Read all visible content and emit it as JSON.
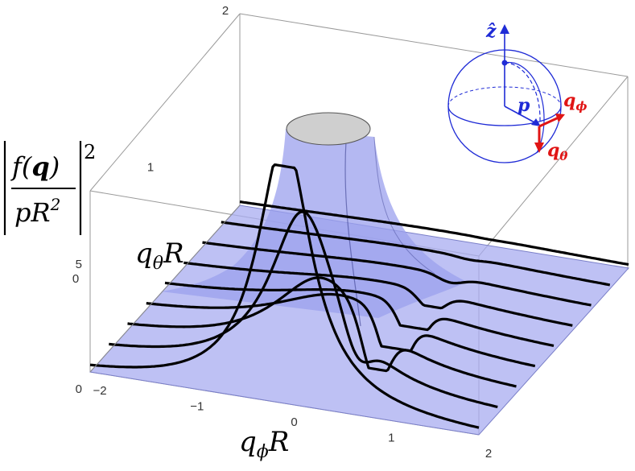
{
  "chart_data": {
    "type": "surface3d",
    "title": "",
    "x_axis": {
      "label": "q",
      "label_sub": "ϕ",
      "label_suffix": "R",
      "ticks": [
        "−2",
        "−1",
        "0",
        "1",
        "2"
      ],
      "range": [
        -2,
        2
      ]
    },
    "y_axis": {
      "label": "q",
      "label_sub": "θ",
      "label_suffix": "R",
      "ticks": [
        "0",
        "1",
        "2"
      ],
      "range": [
        0,
        2
      ]
    },
    "z_axis": {
      "label_parts": {
        "f": "f",
        "lparen": "(",
        "q": "q",
        "rparen": ")",
        "denominator_p": "p",
        "denominator_R": "R",
        "denominator_exp": "2",
        "outer_exp": "2"
      },
      "ticks": [
        "0",
        "5"
      ],
      "range": [
        0,
        10
      ]
    },
    "contour_curves_qthetaR": [
      0.0,
      0.25,
      0.5,
      0.75,
      1.0,
      1.25,
      1.5,
      1.75,
      2.0
    ],
    "colors": {
      "surface": "#a8acf0",
      "curve": "#000000",
      "top_cap": "#cfcfcf",
      "inset_blue": "#1f2bd6",
      "inset_red": "#e01515"
    },
    "inset": {
      "z_label": "ẑ",
      "p_label": "p",
      "q_phi": {
        "base": "q",
        "sub": "ϕ"
      },
      "q_theta": {
        "base": "q",
        "sub": "θ"
      }
    }
  }
}
